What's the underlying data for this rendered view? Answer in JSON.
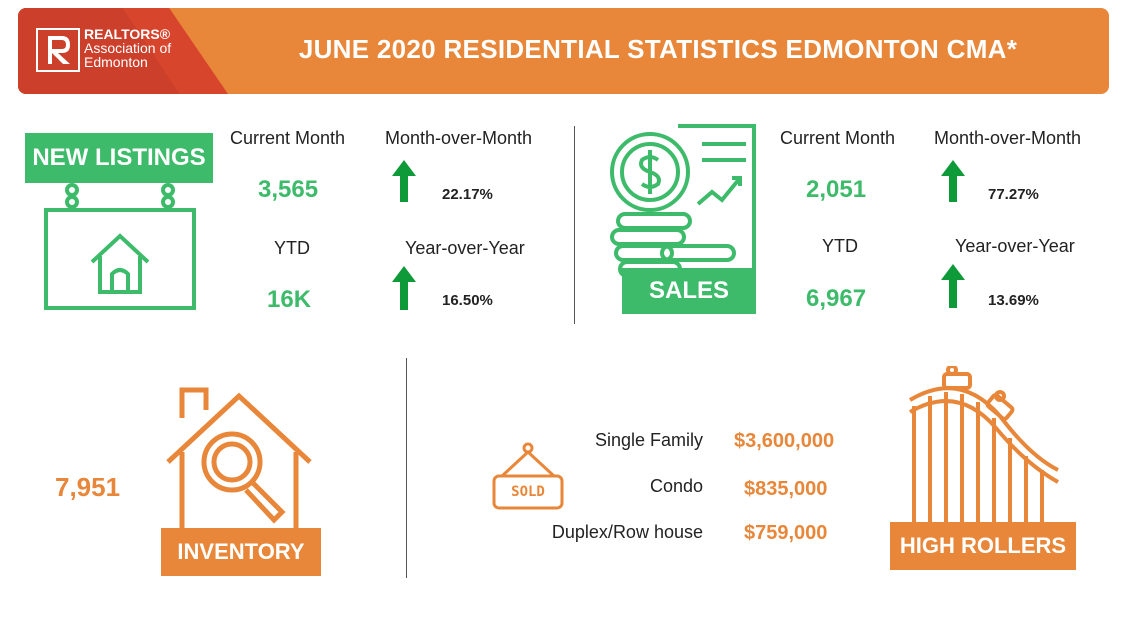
{
  "header": {
    "logo_line1": "REALTORS®",
    "logo_line2": "Association of",
    "logo_line3": "Edmonton",
    "title": "JUNE 2020 RESIDENTIAL STATISTICS EDMONTON CMA*"
  },
  "new_listings": {
    "label": "NEW  LISTINGS",
    "current_month_label": "Current Month",
    "current_month_value": "3,565",
    "mom_label": "Month-over-Month",
    "mom_value": "22.17%",
    "ytd_label": "YTD",
    "ytd_value": "16K",
    "yoy_label": "Year-over-Year",
    "yoy_value": "16.50%"
  },
  "sales": {
    "label": "SALES",
    "current_month_label": "Current Month",
    "current_month_value": "2,051",
    "mom_label": "Month-over-Month",
    "mom_value": "77.27%",
    "ytd_label": "YTD",
    "ytd_value": "6,967",
    "yoy_label": "Year-over-Year",
    "yoy_value": "13.69%"
  },
  "inventory": {
    "value": "7,951",
    "label": "INVENTORY"
  },
  "high_rollers": {
    "sold_sign": "SOLD",
    "rows": [
      {
        "type": "Single Family",
        "price": "$3,600,000"
      },
      {
        "type": "Condo",
        "price": "$835,000"
      },
      {
        "type": "Duplex/Row house",
        "price": "$759,000"
      }
    ],
    "label": "HIGH ROLLERS"
  },
  "colors": {
    "brand_orange": "#e8873a",
    "brand_green": "#3dbb6a",
    "logo_red": "#d7452c"
  },
  "icons": [
    "realtor-r-icon",
    "house-sign-icon",
    "up-arrow-icon",
    "coin-document-icon",
    "house-search-icon",
    "sold-sign-icon",
    "roller-coaster-icon"
  ]
}
